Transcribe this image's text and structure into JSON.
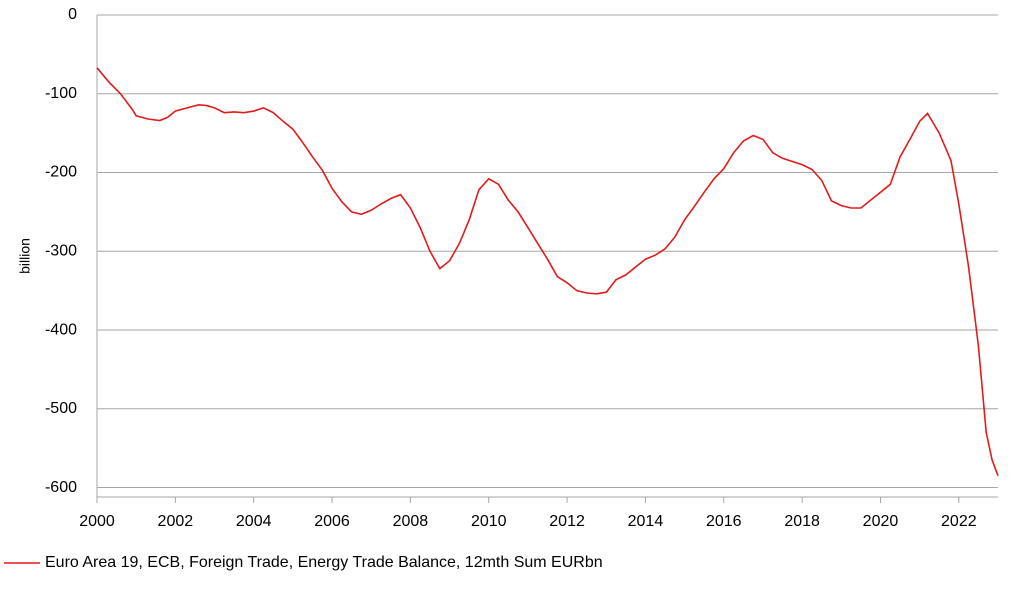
{
  "chart_data": {
    "type": "line",
    "y_label": "billion",
    "xlim": [
      2000,
      2023
    ],
    "xticks": [
      2000,
      2002,
      2004,
      2006,
      2008,
      2010,
      2012,
      2014,
      2016,
      2018,
      2020,
      2022
    ],
    "ylim": [
      -612,
      0
    ],
    "yticks": [
      -600,
      -500,
      -400,
      -300,
      -200,
      -100,
      0
    ],
    "grid": true,
    "legend": "bottom",
    "x": [
      2000.0,
      2000.3,
      2000.6,
      2000.9,
      2001.0,
      2001.3,
      2001.6,
      2001.8,
      2002.0,
      2002.3,
      2002.6,
      2002.8,
      2003.0,
      2003.25,
      2003.5,
      2003.75,
      2004.0,
      2004.25,
      2004.5,
      2004.75,
      2005.0,
      2005.25,
      2005.5,
      2005.75,
      2006.0,
      2006.25,
      2006.5,
      2006.75,
      2007.0,
      2007.25,
      2007.5,
      2007.75,
      2008.0,
      2008.25,
      2008.5,
      2008.75,
      2009.0,
      2009.25,
      2009.5,
      2009.75,
      2010.0,
      2010.25,
      2010.5,
      2010.75,
      2011.0,
      2011.25,
      2011.5,
      2011.75,
      2012.0,
      2012.25,
      2012.5,
      2012.75,
      2013.0,
      2013.25,
      2013.5,
      2013.75,
      2014.0,
      2014.25,
      2014.5,
      2014.75,
      2015.0,
      2015.25,
      2015.5,
      2015.75,
      2016.0,
      2016.25,
      2016.5,
      2016.75,
      2017.0,
      2017.25,
      2017.5,
      2017.75,
      2018.0,
      2018.25,
      2018.5,
      2018.75,
      2019.0,
      2019.25,
      2019.5,
      2019.75,
      2020.0,
      2020.25,
      2020.5,
      2020.75,
      2021.0,
      2021.2,
      2021.5,
      2021.8,
      2022.0,
      2022.25,
      2022.5,
      2022.7,
      2022.85,
      2023.0
    ],
    "series": [
      {
        "name": "Euro Area 19, ECB, Foreign Trade, Energy Trade Balance, 12mth Sum EURbn",
        "color": "#e41a1c",
        "values": [
          -67,
          -85,
          -100,
          -120,
          -128,
          -132,
          -134,
          -130,
          -122,
          -118,
          -114,
          -115,
          -118,
          -124,
          -123,
          -124,
          -122,
          -118,
          -124,
          -135,
          -145,
          -162,
          -180,
          -197,
          -220,
          -237,
          -250,
          -253,
          -248,
          -240,
          -233,
          -228,
          -245,
          -270,
          -300,
          -322,
          -312,
          -290,
          -260,
          -222,
          -208,
          -215,
          -235,
          -250,
          -270,
          -290,
          -310,
          -332,
          -340,
          -350,
          -353,
          -354,
          -352,
          -336,
          -330,
          -320,
          -310,
          -305,
          -297,
          -282,
          -260,
          -243,
          -225,
          -208,
          -195,
          -175,
          -160,
          -153,
          -158,
          -175,
          -182,
          -186,
          -190,
          -196,
          -210,
          -236,
          -242,
          -245,
          -245,
          -235,
          -225,
          -215,
          -180,
          -158,
          -135,
          -125,
          -150,
          -185,
          -240,
          -320,
          -420,
          -530,
          -565,
          -585
        ]
      }
    ]
  }
}
